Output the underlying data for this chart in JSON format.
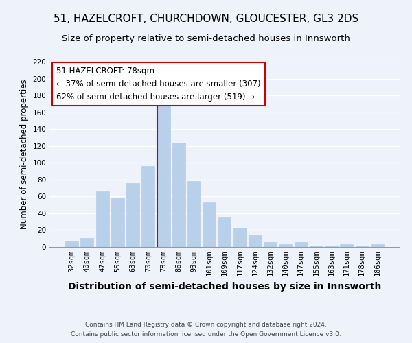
{
  "title": "51, HAZELCROFT, CHURCHDOWN, GLOUCESTER, GL3 2DS",
  "subtitle": "Size of property relative to semi-detached houses in Innsworth",
  "xlabel": "Distribution of semi-detached houses by size in Innsworth",
  "ylabel": "Number of semi-detached properties",
  "footer_line1": "Contains HM Land Registry data © Crown copyright and database right 2024.",
  "footer_line2": "Contains public sector information licensed under the Open Government Licence v3.0.",
  "bar_labels": [
    "32sqm",
    "40sqm",
    "47sqm",
    "55sqm",
    "63sqm",
    "70sqm",
    "78sqm",
    "86sqm",
    "93sqm",
    "101sqm",
    "109sqm",
    "117sqm",
    "124sqm",
    "132sqm",
    "140sqm",
    "147sqm",
    "155sqm",
    "163sqm",
    "171sqm",
    "178sqm",
    "186sqm"
  ],
  "bar_values": [
    7,
    11,
    66,
    58,
    76,
    96,
    172,
    124,
    78,
    53,
    35,
    23,
    14,
    6,
    3,
    6,
    2,
    2,
    3,
    2,
    3
  ],
  "bar_color": "#b8d0ea",
  "highlight_line_color": "#cc0000",
  "highlight_line_index": 6,
  "ylim": [
    0,
    220
  ],
  "yticks": [
    0,
    20,
    40,
    60,
    80,
    100,
    120,
    140,
    160,
    180,
    200,
    220
  ],
  "annotation_title": "51 HAZELCROFT: 78sqm",
  "annotation_line1": "← 37% of semi-detached houses are smaller (307)",
  "annotation_line2": "62% of semi-detached houses are larger (519) →",
  "annotation_box_edge_color": "#cc0000",
  "background_color": "#eef2fb",
  "grid_color": "#ffffff",
  "title_fontsize": 11,
  "subtitle_fontsize": 9.5,
  "xlabel_fontsize": 10,
  "ylabel_fontsize": 8.5,
  "tick_fontsize": 7.5,
  "annotation_fontsize": 8.5,
  "footer_fontsize": 6.5
}
